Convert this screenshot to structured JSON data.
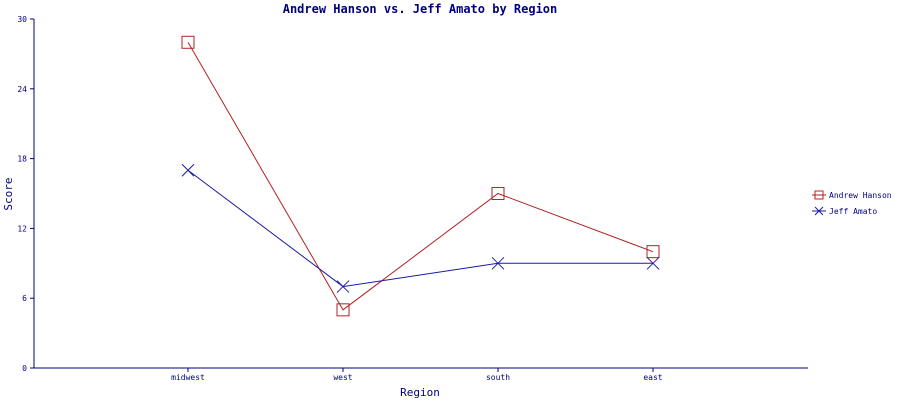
{
  "chart_data": {
    "type": "line",
    "title": "Andrew Hanson vs. Jeff Amato by Region",
    "xlabel": "Region",
    "ylabel": "Score",
    "categories": [
      "midwest",
      "west",
      "south",
      "east"
    ],
    "ylim": [
      0,
      30
    ],
    "yticks": [
      0,
      6,
      12,
      18,
      24,
      30
    ],
    "grid": false,
    "legend_position": "right",
    "series": [
      {
        "name": "Andrew Hanson",
        "values": [
          28,
          5,
          15,
          10
        ],
        "color": "#b22222",
        "marker": "square"
      },
      {
        "name": "Jeff Amato",
        "values": [
          17,
          7,
          9,
          9
        ],
        "color": "#1a1aa6",
        "marker": "x"
      }
    ],
    "colors": {
      "axis": "#000080",
      "text": "#000080"
    }
  }
}
